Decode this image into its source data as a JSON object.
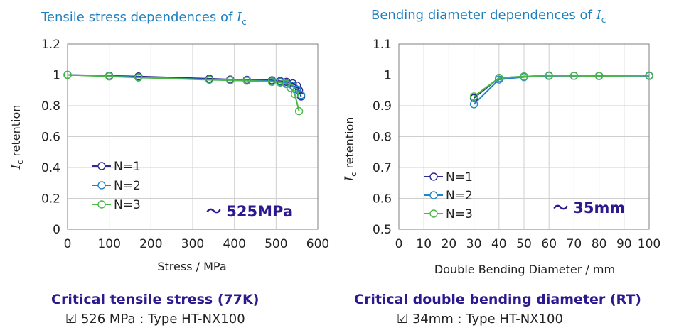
{
  "colors": {
    "N1": "#2e2a8e",
    "N2": "#1f86c6",
    "N3": "#4cb848",
    "title": "#1f7fbf",
    "annotation": "#2b1a8f"
  },
  "chart_data": [
    {
      "type": "line",
      "title_prefix": "Tensile stress dependences of ",
      "title_symbol": "I",
      "title_sub": "c",
      "xlabel": "Stress / MPa",
      "ylabel_symbol": "I",
      "ylabel_sub": "c",
      "ylabel_rest": " retention",
      "xlim": [
        0,
        600
      ],
      "ylim": [
        0,
        1.2
      ],
      "xticks": [
        0,
        100,
        200,
        300,
        400,
        500,
        600
      ],
      "yticks": [
        0,
        0.2,
        0.4,
        0.6,
        0.8,
        1,
        1.2
      ],
      "grid": true,
      "legend_position": "left-middle",
      "annotation": "～ 525MPa",
      "series": [
        {
          "name": "N=1",
          "color": "#2e2a8e",
          "x": [
            0,
            100,
            170,
            340,
            390,
            430,
            490,
            510,
            525,
            540,
            550,
            555,
            560
          ],
          "y": [
            1.0,
            0.995,
            0.99,
            0.975,
            0.97,
            0.968,
            0.965,
            0.96,
            0.955,
            0.945,
            0.93,
            0.9,
            0.86
          ]
        },
        {
          "name": "N=2",
          "color": "#1f86c6",
          "x": [
            0,
            100,
            170,
            340,
            390,
            430,
            490,
            510,
            525,
            540,
            550,
            560
          ],
          "y": [
            1.0,
            0.993,
            0.985,
            0.97,
            0.965,
            0.965,
            0.96,
            0.955,
            0.945,
            0.93,
            0.905,
            0.87
          ]
        },
        {
          "name": "N=3",
          "color": "#4cb848",
          "x": [
            0,
            100,
            170,
            340,
            390,
            430,
            490,
            510,
            525,
            535,
            545,
            555
          ],
          "y": [
            1.0,
            0.99,
            0.983,
            0.968,
            0.965,
            0.962,
            0.955,
            0.95,
            0.94,
            0.915,
            0.875,
            0.765
          ]
        }
      ]
    },
    {
      "type": "line",
      "title_prefix": "Bending diameter dependences of ",
      "title_symbol": "I",
      "title_sub": "c",
      "xlabel": "Double Bending Diameter / mm",
      "ylabel_symbol": "I",
      "ylabel_sub": "c",
      "ylabel_rest": " retention",
      "xlim": [
        0,
        100
      ],
      "ylim": [
        0.5,
        1.1
      ],
      "xticks": [
        0,
        10,
        20,
        30,
        40,
        50,
        60,
        70,
        80,
        90,
        100
      ],
      "yticks": [
        0.5,
        0.6,
        0.7,
        0.8,
        0.9,
        1,
        1.1
      ],
      "grid": true,
      "legend_position": "left-bottom",
      "annotation": "～ 35mm",
      "series": [
        {
          "name": "N=1",
          "color": "#2e2a8e",
          "x": [
            30,
            40,
            50,
            60,
            70,
            80,
            100
          ],
          "y": [
            0.925,
            0.99,
            0.995,
            0.997,
            0.997,
            0.997,
            0.997
          ]
        },
        {
          "name": "N=2",
          "color": "#1f86c6",
          "x": [
            30,
            40,
            50,
            60,
            70,
            80,
            100
          ],
          "y": [
            0.905,
            0.985,
            0.993,
            0.997,
            0.997,
            0.997,
            0.997
          ]
        },
        {
          "name": "N=3",
          "color": "#4cb848",
          "x": [
            30,
            40,
            50,
            60,
            70,
            80,
            100
          ],
          "y": [
            0.93,
            0.99,
            0.995,
            0.998,
            0.997,
            0.996,
            0.998
          ]
        }
      ]
    }
  ],
  "captions": [
    {
      "heading": "Critical tensile stress (77K)",
      "detail": "☑  526 MPa :  Type HT-NX100"
    },
    {
      "heading": "Critical double bending diameter (RT)",
      "detail": "☑  34mm :  Type HT-NX100"
    }
  ]
}
